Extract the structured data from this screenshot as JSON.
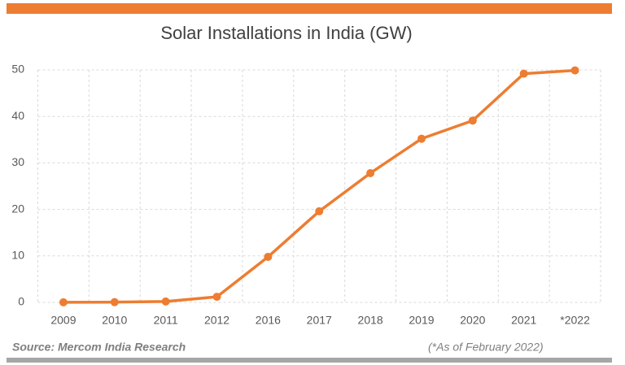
{
  "chart_data": {
    "type": "line",
    "title": "Solar Installations in India (GW)",
    "categories": [
      "2009",
      "2010",
      "2011",
      "2012",
      "2016",
      "2017",
      "2018",
      "2019",
      "2020",
      "2021",
      "*2022"
    ],
    "values": [
      0.02,
      0.06,
      0.2,
      1.2,
      9.8,
      19.6,
      27.8,
      35.2,
      39.1,
      49.2,
      49.9
    ],
    "color": "#ed7d31",
    "ylim": [
      0,
      50
    ],
    "yticks": [
      0,
      10,
      20,
      30,
      40,
      50
    ],
    "grid": true,
    "source": "Source: Mercom India Research",
    "note": "(*As of February 2022)"
  }
}
